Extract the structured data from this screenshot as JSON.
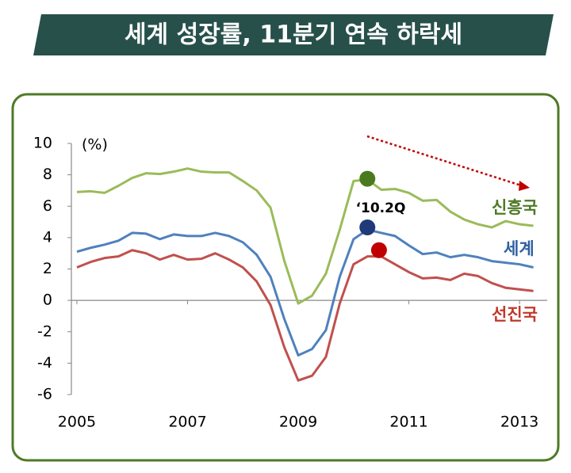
{
  "chart_data": {
    "type": "line",
    "title": "세계 성장률, 11분기 연속 하락세",
    "y_label": "(%)",
    "annotation": "‘10.2Q",
    "x": [
      2005,
      2005.25,
      2005.5,
      2005.75,
      2006,
      2006.25,
      2006.5,
      2006.75,
      2007,
      2007.25,
      2007.5,
      2007.75,
      2008,
      2008.25,
      2008.5,
      2008.75,
      2009,
      2009.25,
      2009.5,
      2009.75,
      2010,
      2010.25,
      2010.5,
      2010.75,
      2011,
      2011.25,
      2011.5,
      2011.75,
      2012,
      2012.25,
      2012.5,
      2012.75,
      2013,
      2013.25
    ],
    "series": [
      {
        "name": "신흥국",
        "color": "#9bbb59",
        "label_color": "#4e7a25",
        "values": [
          6.9,
          6.95,
          6.85,
          7.3,
          7.8,
          8.1,
          8.05,
          8.2,
          8.4,
          8.2,
          8.15,
          8.15,
          7.6,
          7.0,
          5.9,
          2.5,
          -0.2,
          0.3,
          1.7,
          4.5,
          7.6,
          7.7,
          7.05,
          7.1,
          6.85,
          6.35,
          6.4,
          5.65,
          5.15,
          4.85,
          4.65,
          5.05,
          4.85,
          4.75
        ]
      },
      {
        "name": "세계",
        "color": "#4f81bd",
        "label_color": "#2f5fa0",
        "values": [
          3.1,
          3.35,
          3.55,
          3.8,
          4.3,
          4.25,
          3.9,
          4.2,
          4.1,
          4.1,
          4.3,
          4.1,
          3.7,
          2.9,
          1.5,
          -1.2,
          -3.5,
          -3.1,
          -1.9,
          1.5,
          3.9,
          4.5,
          4.3,
          4.1,
          3.5,
          2.95,
          3.05,
          2.75,
          2.9,
          2.75,
          2.5,
          2.4,
          2.3,
          2.1
        ]
      },
      {
        "name": "선진국",
        "color": "#c0504d",
        "label_color": "#c0392b",
        "values": [
          2.1,
          2.45,
          2.7,
          2.8,
          3.2,
          3.0,
          2.6,
          2.9,
          2.6,
          2.65,
          3.0,
          2.6,
          2.1,
          1.2,
          -0.3,
          -3.0,
          -5.1,
          -4.8,
          -3.6,
          -0.2,
          2.3,
          2.8,
          2.8,
          2.3,
          1.8,
          1.4,
          1.45,
          1.3,
          1.7,
          1.55,
          1.1,
          0.8,
          0.7,
          0.6
        ]
      }
    ],
    "highlights": [
      {
        "x": 2010.25,
        "y": 7.75,
        "color": "#4a7a1e"
      },
      {
        "x": 2010.25,
        "y": 4.65,
        "color": "#1f3a78"
      },
      {
        "x": 2010.46,
        "y": 3.2,
        "color": "#c00000"
      }
    ],
    "xlim": [
      2004.9,
      2013.5
    ],
    "xticks": [
      2005,
      2007,
      2009,
      2011,
      2013
    ],
    "ylim": [
      -6,
      10
    ],
    "yticks": [
      -6,
      -4,
      -2,
      0,
      2,
      4,
      6,
      8,
      10
    ]
  }
}
